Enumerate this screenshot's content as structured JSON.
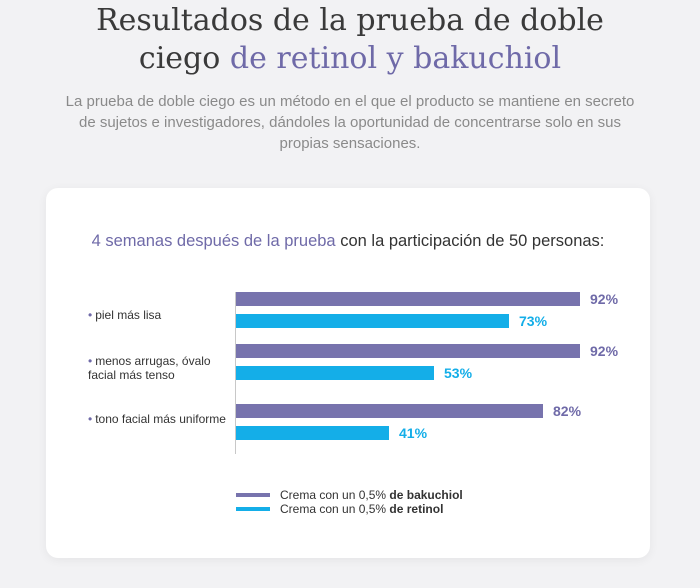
{
  "header": {
    "title_part1": "Resultados de la prueba de doble",
    "title_part2": "ciego",
    "title_accent": "de retinol y bakuchiol",
    "intro": "La prueba de doble ciego es un método en el que el producto se mantiene en secreto de sujetos e investigadores, dándoles la oportunidad de concentrarse solo en sus propias sensaciones."
  },
  "colors": {
    "bakuchiol": "#7773ad",
    "retinol": "#14aee8",
    "accent_text": "#6f6aa8"
  },
  "chart_data": {
    "type": "bar",
    "orientation": "horizontal",
    "title_accent": "4 semanas después de la prueba",
    "title_rest": "con la participación de 50 personas:",
    "categories": [
      "piel más lisa",
      "menos arrugas, óvalo facial más tenso",
      "tono facial más uniforme"
    ],
    "series": [
      {
        "name": "Crema con un 0,5% de bakuchiol",
        "legend_prefix": "Crema con un 0,5%",
        "legend_bold": "de bakuchiol",
        "values": [
          92,
          92,
          82
        ],
        "labels": [
          "92%",
          "92%",
          "82%"
        ],
        "color": "#7773ad"
      },
      {
        "name": "Crema con un 0,5% de retinol",
        "legend_prefix": "Crema con un 0,5%",
        "legend_bold": "de retinol",
        "values": [
          73,
          53,
          41
        ],
        "labels": [
          "73%",
          "53%",
          "41%"
        ],
        "color": "#14aee8"
      }
    ],
    "xlim": [
      0,
      100
    ],
    "legend_position": "bottom",
    "grid": false
  }
}
